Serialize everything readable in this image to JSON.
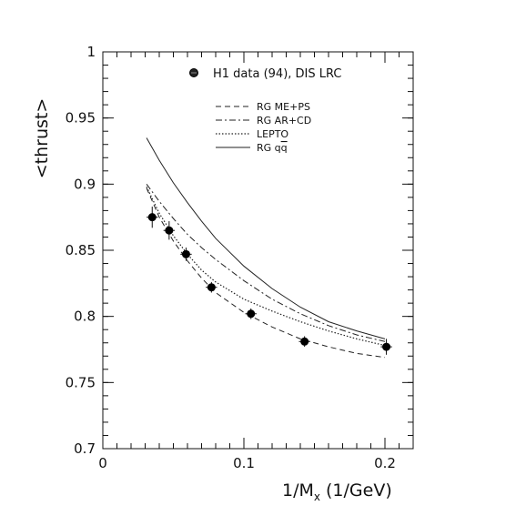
{
  "chart_data": {
    "type": "line",
    "title": "",
    "xlabel": "1/M",
    "xlabel_subscript": "x",
    "xlabel_unit": "(1/GeV)",
    "ylabel": "<thrust>",
    "xlim": [
      0,
      0.22
    ],
    "ylim": [
      0.7,
      1.0
    ],
    "x_ticks": [
      0,
      0.1,
      0.2
    ],
    "x_tick_labels": [
      "0",
      "0.1",
      "0.2"
    ],
    "y_ticks": [
      0.7,
      0.75,
      0.8,
      0.85,
      0.9,
      0.95,
      1.0
    ],
    "y_tick_labels": [
      "0.7",
      "0.75",
      "0.8",
      "0.85",
      "0.9",
      "0.95",
      "1"
    ],
    "grid": false,
    "legend_position": "top-right",
    "data_series": {
      "name": "H1 data (94), DIS LRC",
      "x": [
        0.035,
        0.047,
        0.059,
        0.077,
        0.105,
        0.143,
        0.201
      ],
      "y": [
        0.875,
        0.865,
        0.847,
        0.822,
        0.802,
        0.781,
        0.777
      ],
      "x_err": [
        0.004,
        0.004,
        0.004,
        0.004,
        0.004,
        0.004,
        0.004
      ],
      "y_err": [
        0.008,
        0.007,
        0.005,
        0.004,
        0.004,
        0.004,
        0.006
      ]
    },
    "series": [
      {
        "name": "RG ME+PS",
        "style": "dashed",
        "x": [
          0.031,
          0.04,
          0.05,
          0.06,
          0.07,
          0.08,
          0.1,
          0.12,
          0.14,
          0.16,
          0.18,
          0.2
        ],
        "y": [
          0.897,
          0.875,
          0.857,
          0.842,
          0.829,
          0.818,
          0.803,
          0.792,
          0.783,
          0.777,
          0.772,
          0.769
        ]
      },
      {
        "name": "RG AR+CD",
        "style": "dash-dot",
        "x": [
          0.031,
          0.04,
          0.05,
          0.06,
          0.07,
          0.08,
          0.1,
          0.12,
          0.14,
          0.16,
          0.18,
          0.2
        ],
        "y": [
          0.9,
          0.887,
          0.874,
          0.862,
          0.852,
          0.843,
          0.827,
          0.813,
          0.802,
          0.793,
          0.786,
          0.781
        ]
      },
      {
        "name": "LEPTO",
        "style": "dotted",
        "x": [
          0.031,
          0.04,
          0.05,
          0.06,
          0.07,
          0.08,
          0.1,
          0.12,
          0.14,
          0.16,
          0.18,
          0.2
        ],
        "y": [
          0.898,
          0.878,
          0.861,
          0.847,
          0.835,
          0.826,
          0.813,
          0.804,
          0.796,
          0.789,
          0.783,
          0.778
        ]
      },
      {
        "name": "RG q",
        "name_overline": "q",
        "style": "solid",
        "x": [
          0.031,
          0.04,
          0.05,
          0.06,
          0.07,
          0.08,
          0.1,
          0.12,
          0.14,
          0.16,
          0.18,
          0.2
        ],
        "y": [
          0.935,
          0.918,
          0.901,
          0.886,
          0.872,
          0.859,
          0.838,
          0.821,
          0.807,
          0.796,
          0.789,
          0.783
        ]
      }
    ]
  }
}
